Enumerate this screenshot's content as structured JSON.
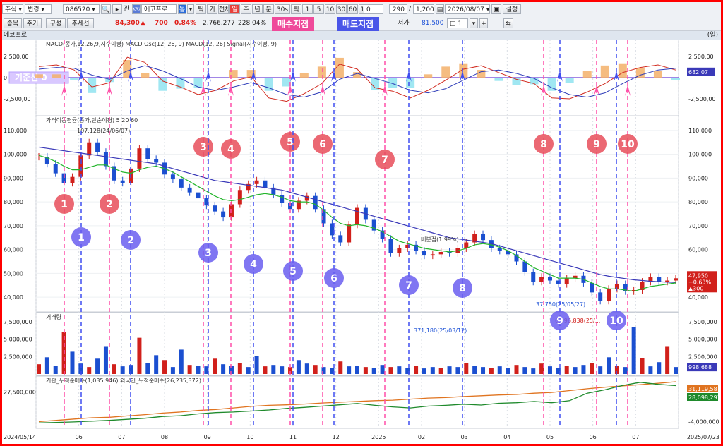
{
  "toolbar": {
    "market_select": "주식",
    "mode_select": "변경",
    "code": "086520",
    "search_icon": "search-icon",
    "related_label": "관",
    "kr_badge": "KRX",
    "stock_name": "에코프로",
    "period_tabs": [
      "틱",
      "기",
      "전체",
      "일",
      "주",
      "년",
      "분",
      "30s",
      "틱",
      "1",
      "5",
      "10",
      "30",
      "60",
      "120"
    ],
    "active_period": "일",
    "counter": "0",
    "count_value": "290",
    "count_total": "1,200",
    "date_value": "2026/08/07",
    "settings_label": "설정"
  },
  "toolbar2": {
    "buttons": [
      "종목",
      "주기",
      "구성",
      "추세선"
    ],
    "price": "84,300",
    "change_arrow": "▲",
    "change": "700",
    "change_pct": "0.84%",
    "volume": "2,766,277",
    "vol_pct": "228.04%",
    "low_label": "저가",
    "low_value": "81,500",
    "spinner_value": "1"
  },
  "tags": {
    "buy": "매수지점",
    "sell": "매도지점"
  },
  "stock_title": "에코프로",
  "units_label": "(일)",
  "colors": {
    "buy": "#ff4fa8",
    "sell": "#3f4df0",
    "up": "#d1201b",
    "down": "#1b4fd0",
    "ma5": "#e34b1d",
    "ma20": "#23b52b",
    "ma60": "#3a39b8"
  },
  "chart_data": [
    {
      "type": "line",
      "title": "MACD(종가,12,26,9,지수이평) MACD Osc(12, 26, 9) MACD(12, 26) Signal(지수이평, 9)",
      "baseline_label": "기준선 0",
      "y_ticks": [
        "2,500,00",
        "0",
        "-2,500,00"
      ],
      "right_ticks": [
        "2,500,00",
        "-2,500,00"
      ],
      "last_value": "682.07",
      "series": [
        {
          "name": "MACD(12, 26)",
          "values": [
            1300,
            1500,
            900,
            -1100,
            -600,
            2400,
            1800,
            -400,
            -1100,
            -2000,
            -1500,
            -400,
            100,
            -2400,
            -2800,
            -1900,
            -700,
            1600,
            1000,
            -1200,
            -1600,
            -2400,
            -1500,
            -300,
            1000,
            1400,
            600,
            -200,
            -700,
            -2400,
            -2500,
            -1700,
            -700,
            600,
            1200,
            1500,
            900
          ]
        },
        {
          "name": "Signal(지수이평, 9)",
          "values": [
            1000,
            1200,
            1100,
            300,
            -200,
            800,
            1400,
            800,
            -100,
            -1100,
            -1500,
            -1100,
            -600,
            -1200,
            -2000,
            -2300,
            -1700,
            -200,
            500,
            -100,
            -700,
            -1500,
            -1800,
            -1300,
            -300,
            700,
            900,
            500,
            -100,
            -1200,
            -2000,
            -2300,
            -1800,
            -700,
            300,
            900,
            1100
          ]
        }
      ]
    },
    {
      "type": "line",
      "title": "가격이동평균(종가,단순이평) 5 20 60",
      "ma_labels": [
        "5",
        "20",
        "60"
      ],
      "y_ticks": [
        "110,000",
        "100,000",
        "90,000",
        "80,000",
        "70,000",
        "60,000",
        "50,000",
        "40,000"
      ],
      "ylim": [
        35000,
        115000
      ],
      "annotations": {
        "high": "107,128(24/06/07)",
        "low": "37,750(25/05/27)",
        "mid": "배분점(1.99%)"
      },
      "last_price": "47,950",
      "last_pct": "+0.63%",
      "last_change": "▲300",
      "series": [
        {
          "name": "종가",
          "values": [
            99000,
            96000,
            92000,
            88000,
            90500,
            99500,
            105000,
            101000,
            95000,
            89000,
            88000,
            94000,
            102500,
            98000,
            96500,
            91500,
            89500,
            86000,
            84000,
            81500,
            78500,
            76000,
            73500,
            79000,
            85000,
            87500,
            89000,
            86000,
            83000,
            79500,
            77000,
            80500,
            82500,
            77000,
            71000,
            66000,
            63000,
            70500,
            77500,
            72500,
            68000,
            64500,
            58500,
            60500,
            62000,
            59500,
            57500,
            58000,
            59000,
            58500,
            60500,
            63000,
            66500,
            64000,
            60500,
            59500,
            58000,
            55000,
            50500,
            46500,
            48500,
            47000,
            45500,
            48000,
            49000,
            46000,
            42000,
            38500,
            43500,
            45500,
            42500,
            43000,
            46500,
            48500,
            46500,
            47000,
            47950
          ]
        },
        {
          "name": "MA20",
          "values": [
            99500,
            98500,
            97000,
            95000,
            93500,
            93500,
            94500,
            95500,
            95500,
            94000,
            92500,
            92000,
            93500,
            94500,
            95000,
            94000,
            92500,
            90500,
            88500,
            86500,
            84500,
            82500,
            81000,
            80500,
            81000,
            82000,
            83000,
            83500,
            83000,
            82000,
            80500,
            80000,
            80000,
            79000,
            76500,
            73500,
            71000,
            70000,
            70500,
            70000,
            69000,
            67500,
            65500,
            63500,
            62500,
            61500,
            60500,
            60000,
            59500,
            59000,
            59500,
            60500,
            62000,
            62500,
            62000,
            61000,
            59500,
            57500,
            55000,
            52500,
            51000,
            49500,
            48000,
            48000,
            48000,
            47500,
            46000,
            44500,
            43500,
            43500,
            43000,
            42500,
            43500,
            44500,
            45000,
            45500,
            46000
          ]
        },
        {
          "name": "MA60",
          "values": [
            103000,
            102500,
            102000,
            101500,
            101000,
            100500,
            100000,
            99500,
            99000,
            98500,
            98000,
            97500,
            97000,
            96500,
            96000,
            95000,
            94000,
            93000,
            92000,
            91000,
            90000,
            89000,
            88500,
            88000,
            87500,
            87000,
            86500,
            86000,
            85500,
            85000,
            84000,
            83000,
            82000,
            81000,
            80000,
            79000,
            78000,
            77000,
            76000,
            75000,
            74000,
            73000,
            72000,
            71000,
            70000,
            69000,
            68000,
            67000,
            66000,
            65000,
            64500,
            64000,
            63500,
            63000,
            62500,
            61500,
            60500,
            59500,
            58500,
            57500,
            56500,
            55500,
            54500,
            53500,
            52500,
            51500,
            50500,
            49500,
            48800,
            48300,
            47800,
            47300,
            47000,
            46700,
            46500,
            46300,
            46200
          ]
        }
      ]
    },
    {
      "type": "bar",
      "title": "거래량",
      "y_ticks": [
        "7,500,000",
        "5,000,000",
        "2,500,000"
      ],
      "annotations": {
        "peak1": "371,180(25/03/12)",
        "peak2": "6,696,838(25/..."
      },
      "last_value": "998,688",
      "values": [
        1.4,
        2.4,
        1.2,
        6.0,
        3.2,
        1.5,
        1.0,
        2.2,
        3.9,
        1.4,
        1.1,
        1.3,
        5.2,
        1.6,
        2.7,
        2.0,
        1.0,
        3.5,
        1.3,
        1.2,
        1.1,
        2.2,
        1.4,
        1.2,
        1.6,
        1.0,
        2.6,
        1.1,
        1.3,
        1.1,
        1.0,
        2.0,
        1.5,
        1.3,
        1.0,
        0.9,
        1.8,
        1.1,
        1.2,
        1.0,
        0.9,
        1.3,
        1.0,
        1.1,
        0.9,
        1.2,
        0.8,
        1.0,
        0.9,
        1.1,
        1.0,
        1.6,
        1.2,
        1.0,
        0.9,
        1.1,
        0.9,
        1.3,
        1.0,
        0.8,
        1.5,
        1.1,
        0.9,
        1.2,
        1.0,
        1.3,
        1.6,
        1.1,
        2.4,
        1.2,
        1.0,
        6.7,
        2.3,
        1.1,
        1.7,
        3.9,
        1.0
      ]
    },
    {
      "type": "line",
      "title": "기관_누적순매수(1,035,946) 외국인_누적순매수(26,235,372)",
      "y_ticks": [
        "27,500,000"
      ],
      "right_ticks": [
        "-4,000,000"
      ],
      "last_values": [
        "31,119,58",
        "28,098,291"
      ],
      "series": [
        {
          "name": "기관_누적순매수",
          "values": [
            -2.5,
            -2.0,
            -1.5,
            -1.0,
            -0.8,
            -0.3,
            0.2,
            0.8,
            1.2,
            1.8,
            2.2,
            2.8,
            3.4,
            3.8,
            4.0,
            4.3,
            4.7,
            5.0,
            5.3,
            5.6,
            5.8,
            6.2,
            6.6,
            6.8,
            7.2,
            7.5,
            7.8,
            8.0,
            8.5,
            8.8,
            9.5,
            10.2,
            10.8,
            11.3,
            11.8,
            12.3,
            12.9
          ]
        },
        {
          "name": "외국인_누적순매수",
          "values": [
            -3.0,
            -2.8,
            -2.6,
            -2.3,
            -2.0,
            -1.6,
            -1.2,
            -0.5,
            -0.2,
            0.5,
            1.0,
            1.2,
            1.6,
            2.0,
            2.6,
            3.0,
            3.5,
            4.0,
            4.5,
            3.8,
            3.2,
            2.8,
            3.5,
            3.8,
            4.2,
            3.9,
            4.6,
            4.8,
            5.3,
            4.8,
            5.6,
            8.5,
            9.8,
            11.5,
            12.7,
            11.9,
            11.4
          ]
        }
      ]
    }
  ],
  "x_axis_labels": [
    "2024/05/14",
    "06",
    "07",
    "08",
    "09",
    "10",
    "11",
    "12",
    "2025",
    "02",
    "03",
    "04",
    "05",
    "06",
    "07",
    "2025/07/23"
  ],
  "buy_points": [
    "1",
    "2",
    "3",
    "4",
    "5",
    "6",
    "7",
    "8",
    "9",
    "10"
  ],
  "sell_points": [
    "1",
    "2",
    "3",
    "4",
    "5",
    "6",
    "7",
    "8",
    "9",
    "10"
  ]
}
